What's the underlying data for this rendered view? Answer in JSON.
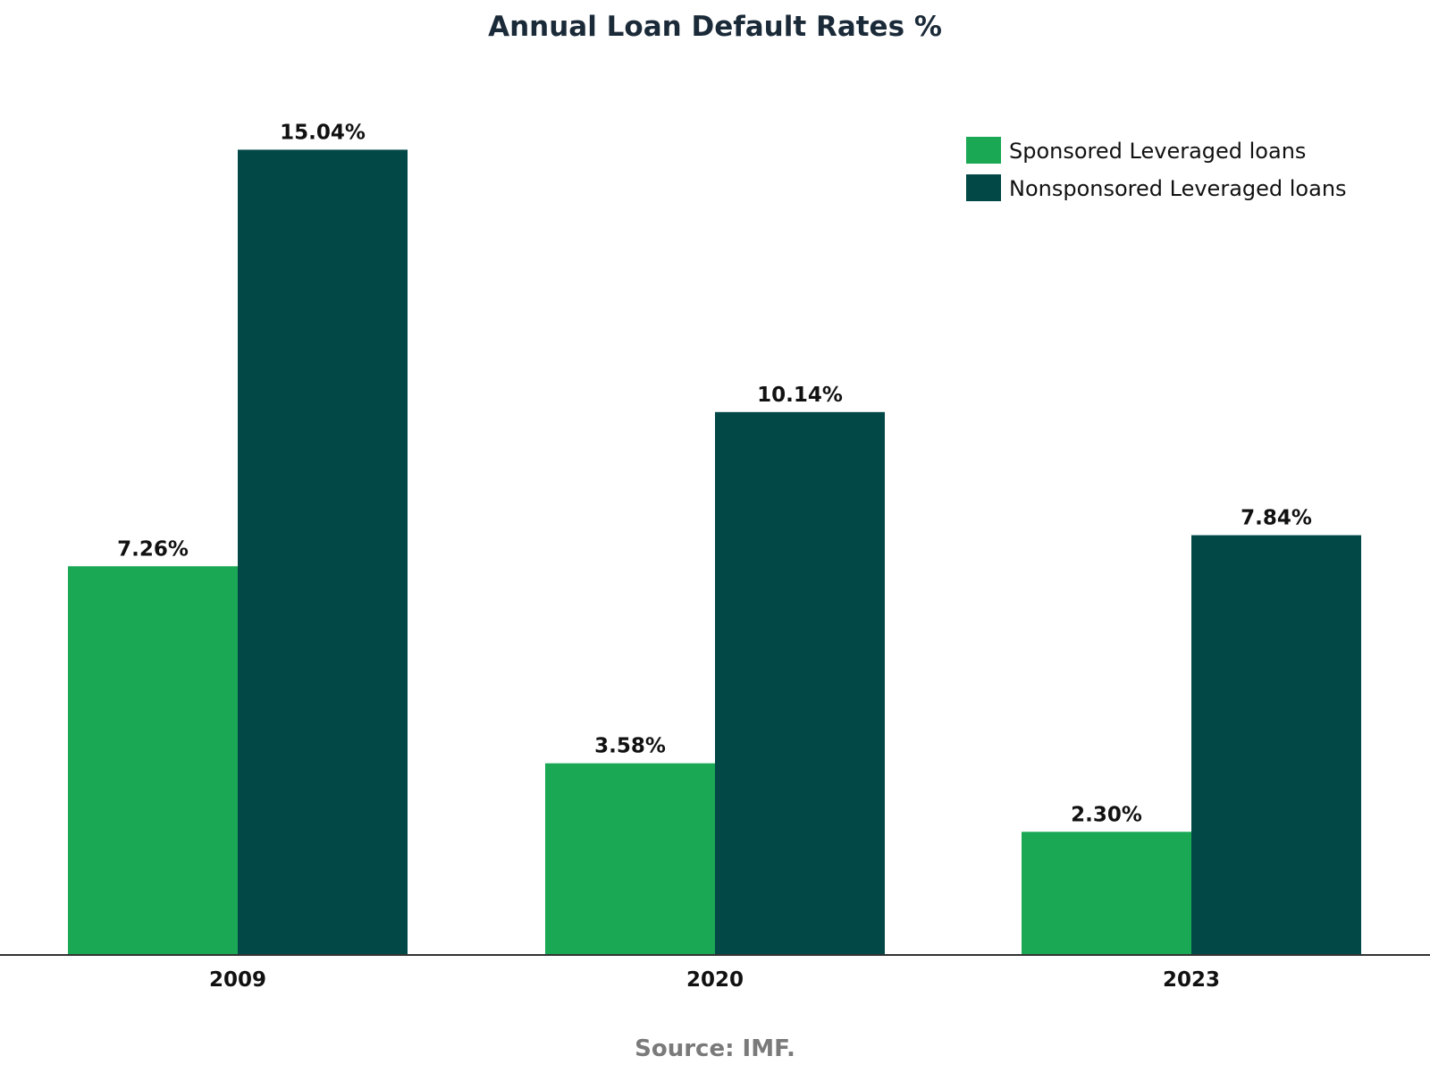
{
  "chart_data": {
    "type": "bar",
    "title": "Annual Loan Default Rates %",
    "categories": [
      "2009",
      "2020",
      "2023"
    ],
    "series": [
      {
        "name": "Sponsored Leveraged loans",
        "values": [
          7.26,
          3.58,
          2.3
        ],
        "labels": [
          "7.26%",
          "3.58%",
          "2.30%"
        ],
        "color": "#1aa855"
      },
      {
        "name": "Nonsponsored Leveraged loans",
        "values": [
          15.04,
          10.14,
          7.84
        ],
        "labels": [
          "15.04%",
          "10.14%",
          "7.84%"
        ],
        "color": "#024846"
      }
    ],
    "ylim": [
      0,
      16.5
    ],
    "grid": false,
    "legend_position": "top-right",
    "source": "Source: IMF."
  }
}
